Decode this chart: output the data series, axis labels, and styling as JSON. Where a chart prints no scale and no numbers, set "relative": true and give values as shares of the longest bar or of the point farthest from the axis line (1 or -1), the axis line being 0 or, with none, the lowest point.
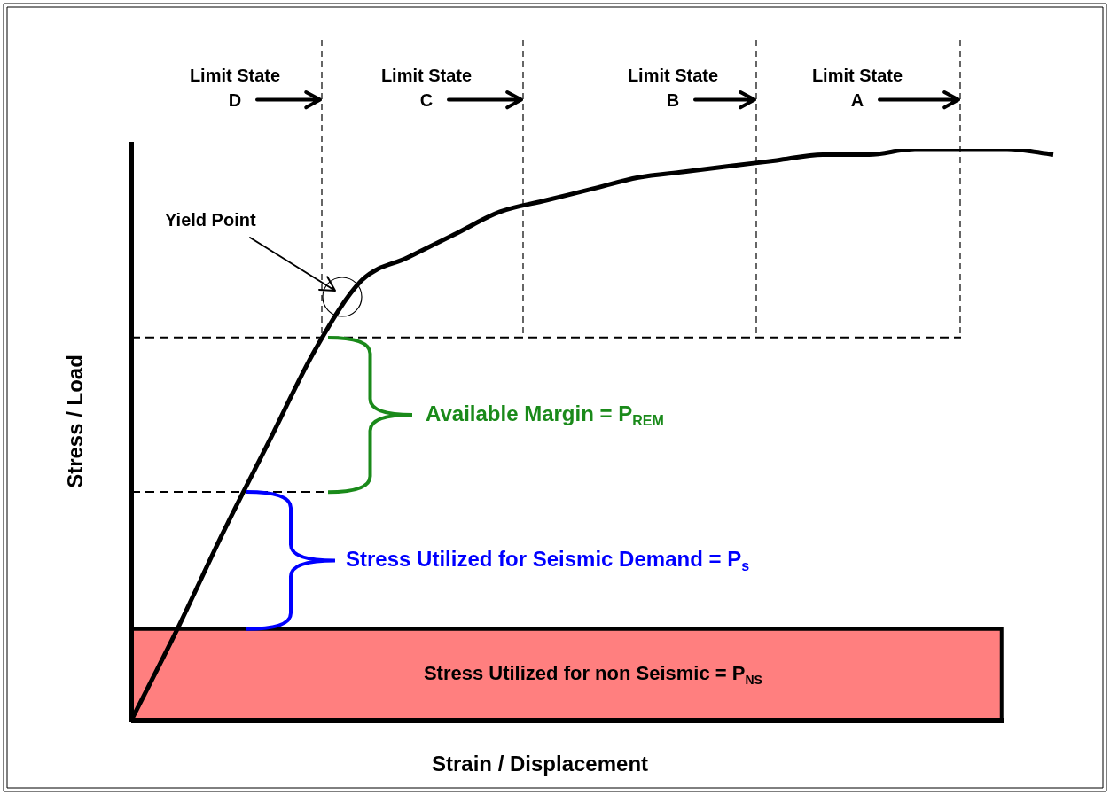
{
  "chart_data": {
    "type": "line",
    "xlabel": "Strain / Displacement",
    "ylabel": "Stress / Load",
    "relative": true,
    "legend": false,
    "marker": "none",
    "categories": [
      null,
      null,
      null,
      null,
      null,
      null,
      null,
      null,
      null,
      null,
      null,
      null,
      null,
      null,
      null,
      null,
      null,
      null,
      null,
      null,
      null
    ],
    "series": [
      {
        "color": "#000000",
        "values": [
          0,
          0.16,
          0.33,
          0.49,
          0.65,
          0.77,
          0.81,
          0.85,
          0.89,
          0.91,
          0.93,
          0.95,
          0.96,
          0.97,
          0.98,
          0.99,
          0.99,
          1,
          1,
          1,
          0.99
        ]
      }
    ],
    "ref_lines": [
      {
        "axis": "y",
        "value": 0.67,
        "line_style": "dashed",
        "color": "#000000"
      },
      {
        "axis": "y",
        "value": 0.4,
        "line_style": "dashed",
        "color": "#000000"
      }
    ],
    "bands": [
      {
        "axis": "y",
        "from": 0,
        "to": 0.16,
        "label": "Stress Utilized for non Seismic = P$_{NS}$",
        "color": "#ff0000"
      }
    ],
    "annotations": [
      "Limit State D",
      "Limit State C",
      "Limit State B",
      "Limit State A",
      "Yield Point",
      "Available Margin = P$_{REM}$",
      "Stress Utilized for Seismic Demand = P$_{s}$"
    ]
  }
}
